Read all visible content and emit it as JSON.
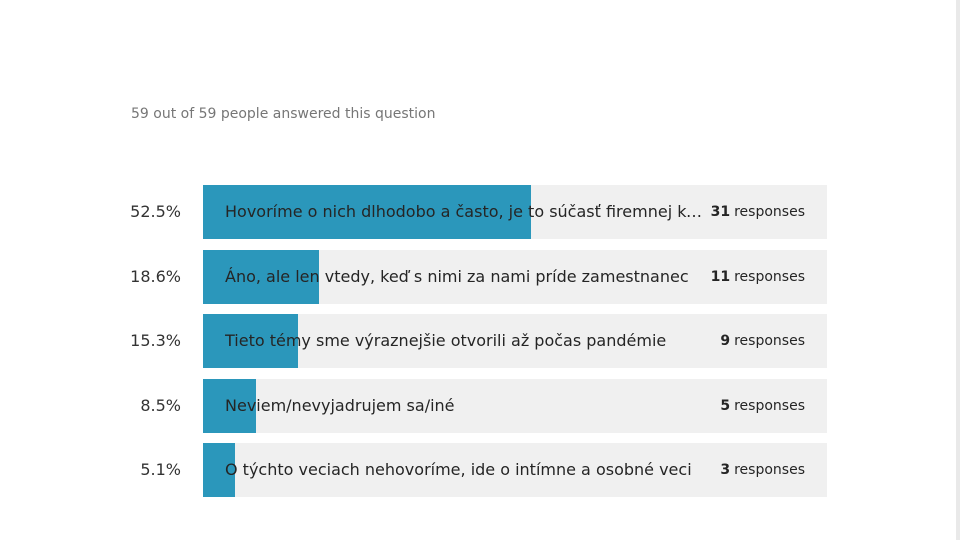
{
  "summary": {
    "text": "59 out of 59 people answered this question"
  },
  "colors": {
    "bar_fill": "#2b97bb",
    "bar_track": "#f0f0f0"
  },
  "chart_data": {
    "type": "bar",
    "orientation": "horizontal",
    "value_unit": "percent",
    "xlim": [
      0,
      100
    ],
    "grid": false,
    "responses_word": "responses",
    "categories": [
      "Hovoríme o nich dlhodobo a často, je to súčasť firemnej kultúry",
      "Áno, ale len vtedy, keď s nimi za nami príde zamestnanec",
      "Tieto témy sme výraznejšie otvorili až počas pandémie",
      "Neviem/nevyjadrujem sa/iné",
      "O týchto veciach nehovoríme, ide o intímne a osobné veci"
    ],
    "percent_labels": [
      "52.5%",
      "18.6%",
      "15.3%",
      "8.5%",
      "5.1%"
    ],
    "values": [
      52.5,
      18.6,
      15.3,
      8.5,
      5.1
    ],
    "counts": [
      31,
      11,
      9,
      5,
      3
    ]
  }
}
